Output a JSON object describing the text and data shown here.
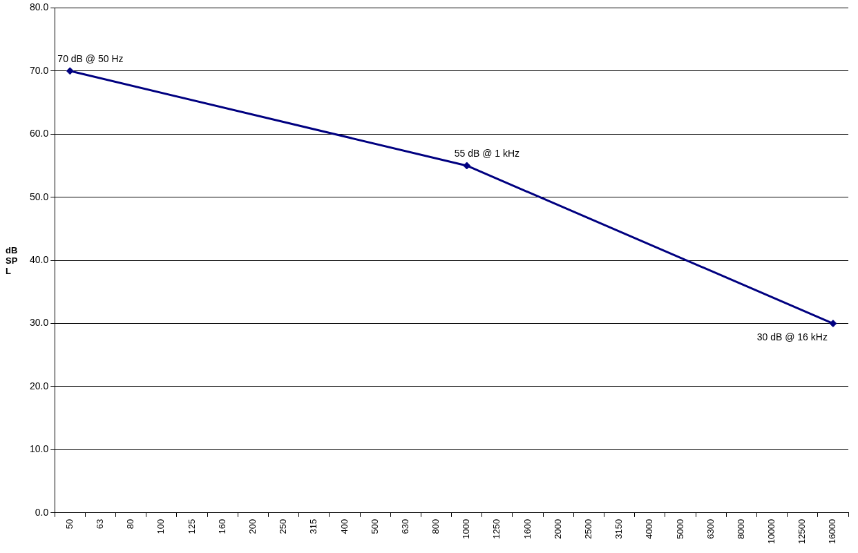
{
  "chart_data": {
    "type": "line",
    "ylabel": "dB SPL",
    "categories": [
      "50",
      "63",
      "80",
      "100",
      "125",
      "160",
      "200",
      "250",
      "315",
      "400",
      "500",
      "630",
      "800",
      "1000",
      "1250",
      "1600",
      "2000",
      "2500",
      "3150",
      "4000",
      "5000",
      "6300",
      "8000",
      "10000",
      "12500",
      "16000"
    ],
    "series": [
      {
        "color": "#000080",
        "values": [
          70,
          null,
          null,
          null,
          null,
          null,
          null,
          null,
          null,
          null,
          null,
          null,
          null,
          55,
          null,
          null,
          null,
          null,
          null,
          null,
          null,
          null,
          null,
          null,
          null,
          30
        ]
      }
    ],
    "ylim": [
      0,
      80
    ],
    "yticks": [
      {
        "value": 0,
        "label": "0.0"
      },
      {
        "value": 10,
        "label": "10.0"
      },
      {
        "value": 20,
        "label": "20.0"
      },
      {
        "value": 30,
        "label": "30.0"
      },
      {
        "value": 40,
        "label": "40.0"
      },
      {
        "value": 50,
        "label": "50.0"
      },
      {
        "value": 60,
        "label": "60.0"
      },
      {
        "value": 70,
        "label": "70.0"
      },
      {
        "value": 80,
        "label": "80.0"
      }
    ],
    "annotations": [
      {
        "text": "70 dB @ 50 Hz",
        "x": "50",
        "y": 70
      },
      {
        "text": "55 dB @ 1 kHz",
        "x": "1000",
        "y": 55
      },
      {
        "text": "30 dB @ 16 kHz",
        "x": "16000",
        "y": 30
      }
    ],
    "grid": "y",
    "legend": false,
    "marker": "diamond",
    "line_style": "solid"
  }
}
